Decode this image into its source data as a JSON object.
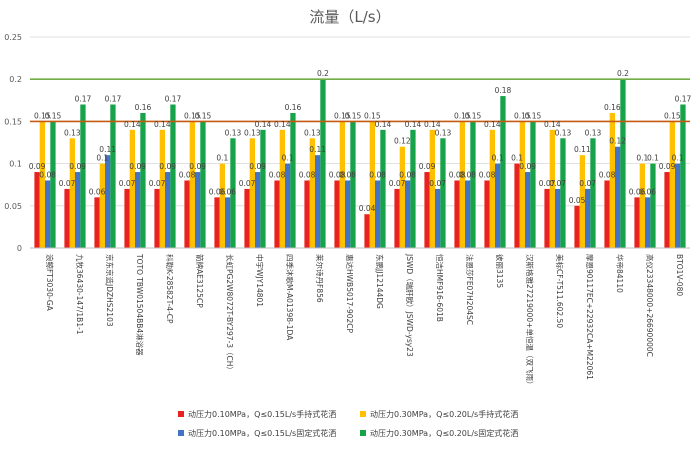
{
  "chart_data": {
    "type": "bar",
    "title": "流量（L/s）",
    "ylim": [
      0,
      0.25
    ],
    "yticks": [
      0,
      0.05,
      0.1,
      0.15,
      0.2,
      0.25
    ],
    "ytick_labels": [
      "0",
      "0.05",
      "0.1",
      "0.15",
      "0.2",
      "0.25"
    ],
    "reference_lines": [
      {
        "value": 0.15,
        "color": "#c55a11"
      },
      {
        "value": 0.2,
        "color": "#70ad47"
      }
    ],
    "categories": [
      "浪鲸FT3030-GA",
      "九牧36430-147/1B1-1",
      "京东京造JDZHS2103",
      "TOTO TBW01504BB4淋浴器",
      "科勒K-28582T-4-CP",
      "箭牌AE3125CP",
      "长虹PG2W8072T-BY297-3（CH）",
      "中宇WJY14801",
      "四季沐歌M-A01398-1DA",
      "莱尔诗丹F856",
      "惠达HWB5017-902CP",
      "东鹏JJ12144DG",
      "JSWD（瑞肝欧）JSWD-ysy23",
      "恒洁HMF916-601B",
      "法恩莎FE07H204SC",
      "彼丽3135",
      "汉斯格雅27219000+单恒温（双飞雨）",
      "美标CF-T511.602.50",
      "摩恩90117EC+22932CA+M22061",
      "华帝84110",
      "高仪23348000+26690000C",
      "BTO1V-080"
    ],
    "series": [
      {
        "name": "动压力0.10MPa，Q≤0.15L/s手持式花洒",
        "color": "#e8221f",
        "values": [
          0.09,
          0.07,
          0.06,
          0.07,
          0.07,
          0.08,
          0.06,
          0.07,
          0.08,
          0.08,
          0.08,
          0.04,
          0.07,
          0.09,
          0.08,
          0.08,
          0.1,
          0.07,
          0.05,
          0.08,
          0.06,
          0.09
        ],
        "labels": [
          "0.09",
          "0.07",
          "0.06",
          "0.07",
          "0.07",
          "0.08",
          "0.06",
          "0.07",
          "0.08",
          "0.08",
          "0.08",
          "0.04",
          "0.07",
          "0.09",
          "0.08",
          "0.08",
          "0.1",
          "0.07",
          "0.05",
          "0.08",
          "0.06",
          "0.09"
        ]
      },
      {
        "name": "动压力0.30MPa，Q≤0.20L/s手持式花洒",
        "color": "#ffc000",
        "values": [
          0.15,
          0.13,
          0.1,
          0.14,
          0.14,
          0.15,
          0.1,
          0.13,
          0.14,
          0.13,
          0.15,
          0.15,
          0.12,
          0.14,
          0.15,
          0.14,
          0.15,
          0.14,
          0.11,
          0.16,
          0.1,
          0.15
        ],
        "labels": [
          "0.15",
          "0.13",
          "0.1",
          "0.14",
          "0.14",
          "0.15",
          "0.1",
          "0.13",
          "0.14",
          "0.13",
          "0.15",
          "0.15",
          "0.12",
          "0.14",
          "0.15",
          "0.14",
          "0.15",
          "0.14",
          "0.11",
          "0.16",
          "0.1",
          "0.15"
        ]
      },
      {
        "name": "动压力0.10MPa，Q≤0.15L/s固定式花洒",
        "color": "#4472c4",
        "values": [
          0.08,
          0.09,
          0.11,
          0.09,
          0.09,
          0.09,
          0.06,
          0.09,
          0.1,
          0.11,
          0.08,
          0.08,
          0.08,
          0.07,
          0.08,
          0.1,
          0.09,
          0.07,
          0.07,
          0.12,
          0.06,
          0.1
        ],
        "labels": [
          "0.08",
          "0.09",
          "0.11",
          "0.09",
          "0.09",
          "0.09",
          "0.06",
          "0.09",
          "0.1",
          "0.11",
          "0.08",
          "0.08",
          "0.08",
          "0.07",
          "0.08",
          "0.1",
          "0.09",
          "0.07",
          "0.07",
          "0.12",
          "0.06",
          "0.1"
        ]
      },
      {
        "name": "动压力0.30MPa，Q≤0.20L/s固定式花洒",
        "color": "#17a34a",
        "values": [
          0.15,
          0.17,
          0.17,
          0.16,
          0.17,
          0.15,
          0.13,
          0.14,
          0.16,
          0.2,
          0.15,
          0.14,
          0.14,
          0.13,
          0.15,
          0.18,
          0.15,
          0.13,
          0.13,
          0.2,
          0.1,
          0.17
        ],
        "labels": [
          "0.15",
          "0.17",
          "0.17",
          "0.16",
          "0.17",
          "0.15",
          "0.13",
          "0.14",
          "0.16",
          "0.2",
          "0.15",
          "0.14",
          "0.14",
          "0.13",
          "0.15",
          "0.18",
          "0.15",
          "0.13",
          "0.13",
          "0.2",
          "0.1",
          "0.17"
        ]
      }
    ],
    "legend_position": "bottom",
    "grid": true
  }
}
